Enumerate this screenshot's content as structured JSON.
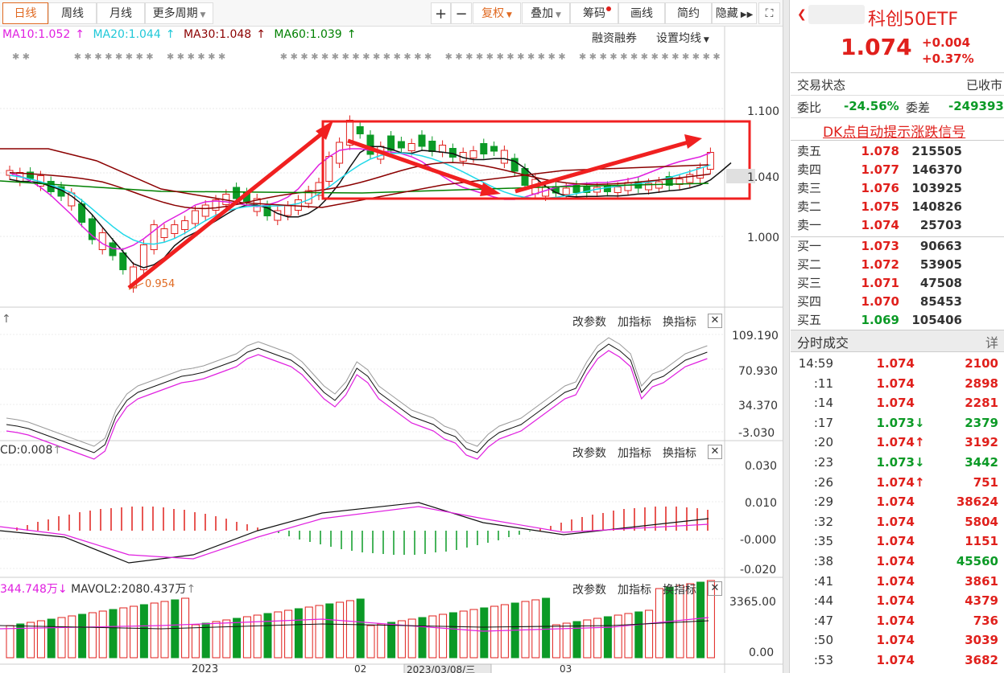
{
  "toolbar": {
    "period_tabs": [
      "日线",
      "周线",
      "月线",
      "更多周期"
    ],
    "right_buttons": [
      "复权",
      "叠加",
      "筹码",
      "画线",
      "简约",
      "隐藏"
    ]
  },
  "ma_line": {
    "ma10": "MA10:1.052",
    "ma20": "MA20:1.044",
    "ma30": "MA30:1.048",
    "ma60": "MA60:1.039",
    "margin_link": "融资融券",
    "settings_link": "设置均线"
  },
  "main_chart": {
    "price_labels": [
      "1.100",
      "1.040",
      "1.000"
    ],
    "low_annotation": "0.954"
  },
  "panel_links": {
    "change_params": "改参数",
    "add_indicator": "加指标",
    "switch_indicator": "换指标"
  },
  "kdj_panel": {
    "axis_labels": [
      "109.190",
      "70.930",
      "34.370",
      "-3.030"
    ]
  },
  "macd_panel": {
    "title": "CD:0.008",
    "axis_labels": [
      "0.030",
      "0.010",
      "-0.000",
      "-0.020"
    ]
  },
  "vol_panel": {
    "title": "344.748万",
    "mavol2": "MAVOL2:2080.437万",
    "axis_labels": [
      "3365.00",
      "0.00"
    ]
  },
  "date_axis": {
    "year": "2023",
    "m1": "02",
    "cursor_date": "2023/03/08/三",
    "m2": "03"
  },
  "quote": {
    "name": "科创50ETF",
    "price": "1.074",
    "change": "+0.004",
    "change_pct": "+0.37%",
    "status_label": "交易状态",
    "status_value": "已收市",
    "wb_label": "委比",
    "wb_value": "-24.56%",
    "wc_label": "委差",
    "wc_value": "-249393",
    "dk_signal": "DK点自动提示涨跌信号"
  },
  "order_book": {
    "asks": [
      {
        "label": "卖五",
        "price": "1.078",
        "vol": "215505"
      },
      {
        "label": "卖四",
        "price": "1.077",
        "vol": "146370"
      },
      {
        "label": "卖三",
        "price": "1.076",
        "vol": "103925"
      },
      {
        "label": "卖二",
        "price": "1.075",
        "vol": "140826"
      },
      {
        "label": "卖一",
        "price": "1.074",
        "vol": "25703"
      }
    ],
    "bids": [
      {
        "label": "买一",
        "price": "1.073",
        "vol": "90663"
      },
      {
        "label": "买二",
        "price": "1.072",
        "vol": "53905"
      },
      {
        "label": "买三",
        "price": "1.071",
        "vol": "47508"
      },
      {
        "label": "买四",
        "price": "1.070",
        "vol": "85453"
      },
      {
        "label": "买五",
        "price": "1.069",
        "vol": "105406"
      }
    ]
  },
  "ticks": {
    "title": "分时成交",
    "detail_link": "详",
    "rows": [
      {
        "time": "14:59",
        "price": "1.074",
        "arrow": "",
        "vol": "2100",
        "vcolor": "red"
      },
      {
        "time": ":11",
        "price": "1.074",
        "arrow": "",
        "vol": "2898",
        "vcolor": "red"
      },
      {
        "time": ":14",
        "price": "1.074",
        "arrow": "",
        "vol": "2281",
        "vcolor": "red"
      },
      {
        "time": ":17",
        "price": "1.073",
        "arrow": "↓",
        "vol": "2379",
        "vcolor": "green"
      },
      {
        "time": ":20",
        "price": "1.074",
        "arrow": "↑",
        "vol": "3192",
        "vcolor": "red"
      },
      {
        "time": ":23",
        "price": "1.073",
        "arrow": "↓",
        "vol": "3442",
        "vcolor": "green"
      },
      {
        "time": ":26",
        "price": "1.074",
        "arrow": "↑",
        "vol": "751",
        "vcolor": "red"
      },
      {
        "time": ":29",
        "price": "1.074",
        "arrow": "",
        "vol": "38624",
        "vcolor": "red"
      },
      {
        "time": ":32",
        "price": "1.074",
        "arrow": "",
        "vol": "5804",
        "vcolor": "red"
      },
      {
        "time": ":35",
        "price": "1.074",
        "arrow": "",
        "vol": "1151",
        "vcolor": "red"
      },
      {
        "time": ":38",
        "price": "1.074",
        "arrow": "",
        "vol": "45560",
        "vcolor": "green"
      },
      {
        "time": ":41",
        "price": "1.074",
        "arrow": "",
        "vol": "3861",
        "vcolor": "red"
      },
      {
        "time": ":44",
        "price": "1.074",
        "arrow": "",
        "vol": "4379",
        "vcolor": "red"
      },
      {
        "time": ":47",
        "price": "1.074",
        "arrow": "",
        "vol": "736",
        "vcolor": "red"
      },
      {
        "time": ":50",
        "price": "1.074",
        "arrow": "",
        "vol": "3039",
        "vcolor": "red"
      },
      {
        "time": ":53",
        "price": "1.074",
        "arrow": "",
        "vol": "3682",
        "vcolor": "red"
      }
    ]
  },
  "colors": {
    "up": "#e0201c",
    "down": "#0b9a26",
    "ma10": "#e020e0",
    "ma20": "#20d8e8",
    "ma30": "#8b0000",
    "ma60": "#008000",
    "accent": "#e06a22"
  }
}
